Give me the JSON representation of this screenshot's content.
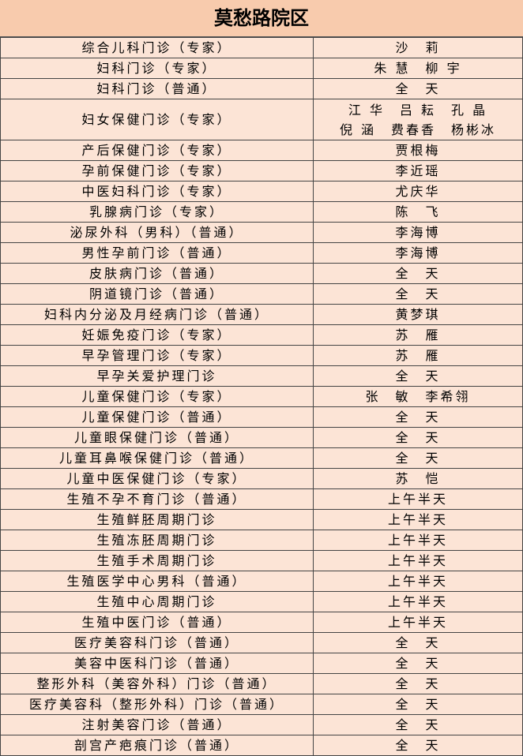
{
  "header": {
    "title": "莫愁路院区"
  },
  "table": {
    "rows": [
      [
        "综合儿科门诊（专家）",
        "沙　莉"
      ],
      [
        "妇科门诊（专家）",
        "朱 慧　柳 宇"
      ],
      [
        "妇科门诊（普通）",
        "全　天"
      ],
      [
        "妇女保健门诊（专家）",
        [
          "江 华　吕 耘　孔 晶",
          "倪 涵　费春香　杨彬冰"
        ]
      ],
      [
        "产后保健门诊（专家）",
        "贾根梅"
      ],
      [
        "孕前保健门诊（专家）",
        "李近瑶"
      ],
      [
        "中医妇科门诊（专家）",
        "尤庆华"
      ],
      [
        "乳腺病门诊（专家）",
        "陈　飞"
      ],
      [
        "泌尿外科（男科）（普通）",
        "李海博"
      ],
      [
        "男性孕前门诊（普通）",
        "李海博"
      ],
      [
        "皮肤病门诊（普通）",
        "全　天"
      ],
      [
        "阴道镜门诊（普通）",
        "全　天"
      ],
      [
        "妇科内分泌及月经病门诊（普通）",
        "黄梦琪"
      ],
      [
        "妊娠免疫门诊（专家）",
        "苏　雁"
      ],
      [
        "早孕管理门诊（专家）",
        "苏　雁"
      ],
      [
        "早孕关爱护理门诊",
        "全　天"
      ],
      [
        "儿童保健门诊（专家）",
        "张　敏　李希翎"
      ],
      [
        "儿童保健门诊（普通）",
        "全　天"
      ],
      [
        "儿童眼保健门诊（普通）",
        "全　天"
      ],
      [
        "儿童耳鼻喉保健门诊（普通）",
        "全　天"
      ],
      [
        "儿童中医保健门诊（专家）",
        "苏　恺"
      ],
      [
        "生殖不孕不育门诊（普通）",
        "上午半天"
      ],
      [
        "生殖鲜胚周期门诊",
        "上午半天"
      ],
      [
        "生殖冻胚周期门诊",
        "上午半天"
      ],
      [
        "生殖手术周期门诊",
        "上午半天"
      ],
      [
        "生殖医学中心男科（普通）",
        "上午半天"
      ],
      [
        "生殖中心周期门诊",
        "上午半天"
      ],
      [
        "生殖中医门诊（普通）",
        "上午半天"
      ],
      [
        "医疗美容科门诊（普通）",
        "全　天"
      ],
      [
        "美容中医科门诊（普通）",
        "全　天"
      ],
      [
        "整形外科（美容外科）门诊（普通）",
        "全　天"
      ],
      [
        "医疗美容科（整形外科）门诊（普通）",
        "全　天"
      ],
      [
        "注射美容门诊（普通）",
        "全　天"
      ],
      [
        "剖宫产疤痕门诊（普通）",
        "全　天"
      ]
    ]
  }
}
